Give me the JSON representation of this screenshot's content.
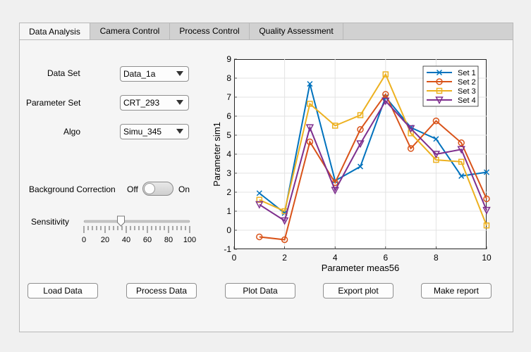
{
  "tabs": [
    "Data Analysis",
    "Camera Control",
    "Process Control",
    "Quality Assessment"
  ],
  "form": {
    "data_set_label": "Data Set",
    "data_set_value": "Data_1a",
    "param_set_label": "Parameter Set",
    "param_set_value": "CRT_293",
    "algo_label": "Algo",
    "algo_value": "Simu_345",
    "bg_label": "Background Correction",
    "bg_off": "Off",
    "bg_on": "On",
    "sens_label": "Sensitivity",
    "sens_ticks": [
      "0",
      "20",
      "40",
      "60",
      "80",
      "100"
    ],
    "sens_value": 35
  },
  "buttons": [
    "Load Data",
    "Process Data",
    "Plot Data",
    "Export plot",
    "Make report"
  ],
  "chart_data": {
    "type": "line",
    "xlabel": "Parameter meas56",
    "ylabel": "Parameter sim1",
    "xlim": [
      0,
      10
    ],
    "ylim": [
      -1,
      9
    ],
    "x_ticks": [
      "0",
      "2",
      "4",
      "6",
      "8",
      "10"
    ],
    "y_ticks": [
      "-1",
      "0",
      "1",
      "2",
      "3",
      "4",
      "5",
      "6",
      "7",
      "8",
      "9"
    ],
    "grid": true,
    "legend_position": "top-right",
    "x": [
      1,
      2,
      3,
      4,
      5,
      6,
      7,
      8,
      9,
      10
    ],
    "series": [
      {
        "name": "Set 1",
        "color": "#0072BD",
        "marker": "x",
        "values": [
          1.95,
          0.9,
          7.7,
          2.6,
          3.35,
          7.0,
          5.4,
          4.8,
          2.85,
          3.05
        ]
      },
      {
        "name": "Set 2",
        "color": "#D95319",
        "marker": "o",
        "values": [
          -0.35,
          -0.5,
          4.65,
          2.5,
          5.3,
          7.15,
          4.3,
          5.75,
          4.6,
          1.65
        ]
      },
      {
        "name": "Set 3",
        "color": "#EDB120",
        "marker": "s",
        "values": [
          1.6,
          1.0,
          6.65,
          5.5,
          6.05,
          8.2,
          5.1,
          3.7,
          3.6,
          0.25
        ]
      },
      {
        "name": "Set 4",
        "color": "#7E2F8E",
        "marker": "v",
        "values": [
          1.35,
          0.5,
          5.4,
          2.1,
          4.55,
          6.8,
          5.35,
          4.0,
          4.25,
          1.05
        ]
      }
    ]
  }
}
